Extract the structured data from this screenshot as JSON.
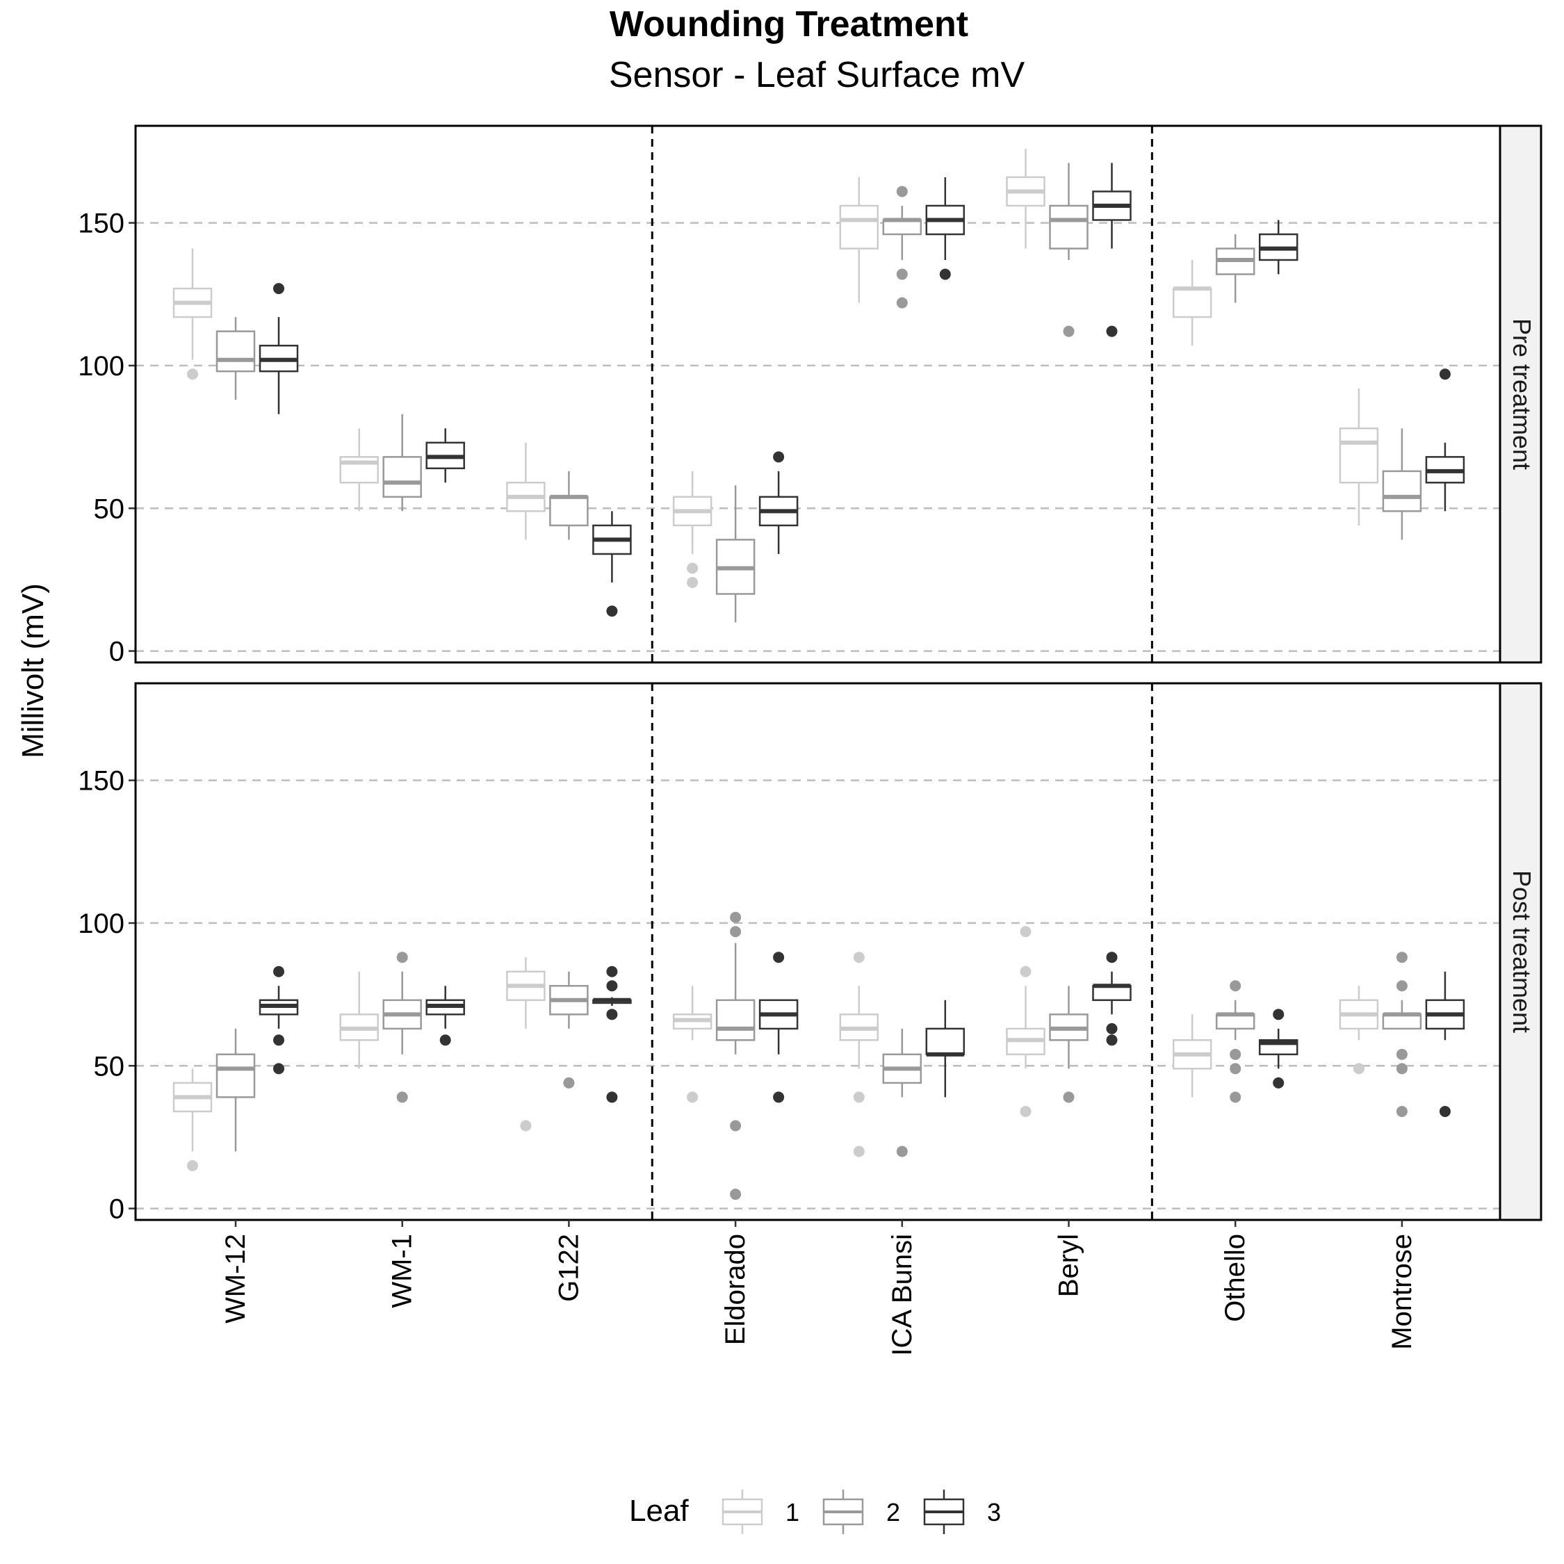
{
  "chart_data": {
    "type": "boxplot",
    "title": "Wounding Treatment",
    "subtitle": "Sensor - Leaf Surface mV",
    "ylabel": "Millivolt (mV)",
    "xlabel": "",
    "ylim": [
      -4,
      184
    ],
    "yticks": [
      0,
      50,
      100,
      150
    ],
    "grid": "horizontal dashed",
    "categories": [
      "WM-12",
      "WM-1",
      "G122",
      "Eldorado",
      "ICA Bunsi",
      "Beryl",
      "Othello",
      "Montrose"
    ],
    "group_separators_after": [
      3,
      6
    ],
    "legend": {
      "title": "Leaf",
      "position": "bottom",
      "entries": [
        "1",
        "2",
        "3"
      ]
    },
    "series_colors": [
      "#cccccc",
      "#999999",
      "#333333"
    ],
    "panels": [
      {
        "label": "Pre treatment",
        "boxes": [
          [
            {
              "min": 102,
              "q1": 117,
              "median": 122,
              "q3": 127,
              "max": 141,
              "outliers": [
                97
              ]
            },
            {
              "min": 88,
              "q1": 98,
              "median": 102,
              "q3": 112,
              "max": 117,
              "outliers": []
            },
            {
              "min": 83,
              "q1": 98,
              "median": 102,
              "q3": 107,
              "max": 117,
              "outliers": [
                127
              ]
            }
          ],
          [
            {
              "min": 49,
              "q1": 59,
              "median": 66,
              "q3": 68,
              "max": 78,
              "outliers": []
            },
            {
              "min": 49,
              "q1": 54,
              "median": 59,
              "q3": 68,
              "max": 83,
              "outliers": []
            },
            {
              "min": 59,
              "q1": 64,
              "median": 68,
              "q3": 73,
              "max": 78,
              "outliers": []
            }
          ],
          [
            {
              "min": 39,
              "q1": 49,
              "median": 54,
              "q3": 59,
              "max": 73,
              "outliers": []
            },
            {
              "min": 39,
              "q1": 44,
              "median": 54,
              "q3": 54,
              "max": 63,
              "outliers": []
            },
            {
              "min": 24,
              "q1": 34,
              "median": 39,
              "q3": 44,
              "max": 49,
              "outliers": [
                14
              ]
            }
          ],
          [
            {
              "min": 34,
              "q1": 44,
              "median": 49,
              "q3": 54,
              "max": 63,
              "outliers": [
                29,
                24
              ]
            },
            {
              "min": 10,
              "q1": 20,
              "median": 29,
              "q3": 39,
              "max": 58,
              "outliers": []
            },
            {
              "min": 34,
              "q1": 44,
              "median": 49,
              "q3": 54,
              "max": 63,
              "outliers": [
                68
              ]
            }
          ],
          [
            {
              "min": 122,
              "q1": 141,
              "median": 151,
              "q3": 156,
              "max": 166,
              "outliers": []
            },
            {
              "min": 137,
              "q1": 146,
              "median": 151,
              "q3": 151,
              "max": 156,
              "outliers": [
                161,
                132,
                122
              ]
            },
            {
              "min": 137,
              "q1": 146,
              "median": 151,
              "q3": 156,
              "max": 166,
              "outliers": [
                132
              ]
            }
          ],
          [
            {
              "min": 141,
              "q1": 156,
              "median": 161,
              "q3": 166,
              "max": 176,
              "outliers": []
            },
            {
              "min": 137,
              "q1": 141,
              "median": 151,
              "q3": 156,
              "max": 171,
              "outliers": [
                112
              ]
            },
            {
              "min": 141,
              "q1": 151,
              "median": 156,
              "q3": 161,
              "max": 171,
              "outliers": [
                112
              ]
            }
          ],
          [
            {
              "min": 107,
              "q1": 117,
              "median": 127,
              "q3": 127,
              "max": 137,
              "outliers": []
            },
            {
              "min": 122,
              "q1": 132,
              "median": 137,
              "q3": 141,
              "max": 146,
              "outliers": []
            },
            {
              "min": 132,
              "q1": 137,
              "median": 141,
              "q3": 146,
              "max": 151,
              "outliers": []
            }
          ],
          [
            {
              "min": 44,
              "q1": 59,
              "median": 73,
              "q3": 78,
              "max": 92,
              "outliers": []
            },
            {
              "min": 39,
              "q1": 49,
              "median": 54,
              "q3": 63,
              "max": 78,
              "outliers": []
            },
            {
              "min": 49,
              "q1": 59,
              "median": 63,
              "q3": 68,
              "max": 73,
              "outliers": [
                97
              ]
            }
          ]
        ]
      },
      {
        "label": "Post treatment",
        "boxes": [
          [
            {
              "min": 20,
              "q1": 34,
              "median": 39,
              "q3": 44,
              "max": 49,
              "outliers": [
                15
              ]
            },
            {
              "min": 20,
              "q1": 39,
              "median": 49,
              "q3": 54,
              "max": 63,
              "outliers": []
            },
            {
              "min": 63,
              "q1": 68,
              "median": 71,
              "q3": 73,
              "max": 78,
              "outliers": [
                83,
                59,
                49
              ]
            }
          ],
          [
            {
              "min": 49,
              "q1": 59,
              "median": 63,
              "q3": 68,
              "max": 83,
              "outliers": []
            },
            {
              "min": 54,
              "q1": 63,
              "median": 68,
              "q3": 73,
              "max": 83,
              "outliers": [
                88,
                39
              ]
            },
            {
              "min": 63,
              "q1": 68,
              "median": 71,
              "q3": 73,
              "max": 78,
              "outliers": [
                59
              ]
            }
          ],
          [
            {
              "min": 63,
              "q1": 73,
              "median": 78,
              "q3": 83,
              "max": 88,
              "outliers": [
                29
              ]
            },
            {
              "min": 63,
              "q1": 68,
              "median": 73,
              "q3": 78,
              "max": 83,
              "outliers": [
                44
              ]
            },
            {
              "min": 71,
              "q1": 72,
              "median": 73,
              "q3": 73,
              "max": 74,
              "outliers": [
                83,
                78,
                68,
                39
              ]
            }
          ],
          [
            {
              "min": 59,
              "q1": 63,
              "median": 66,
              "q3": 68,
              "max": 78,
              "outliers": [
                39
              ]
            },
            {
              "min": 54,
              "q1": 59,
              "median": 63,
              "q3": 73,
              "max": 93,
              "outliers": [
                102,
                97,
                29,
                5
              ]
            },
            {
              "min": 54,
              "q1": 63,
              "median": 68,
              "q3": 73,
              "max": 73,
              "outliers": [
                88,
                39
              ]
            }
          ],
          [
            {
              "min": 49,
              "q1": 59,
              "median": 63,
              "q3": 68,
              "max": 78,
              "outliers": [
                88,
                39,
                20
              ]
            },
            {
              "min": 39,
              "q1": 44,
              "median": 49,
              "q3": 54,
              "max": 63,
              "outliers": [
                20
              ]
            },
            {
              "min": 39,
              "q1": 54,
              "median": 54,
              "q3": 63,
              "max": 73,
              "outliers": []
            }
          ],
          [
            {
              "min": 49,
              "q1": 54,
              "median": 59,
              "q3": 63,
              "max": 78,
              "outliers": [
                97,
                83,
                34
              ]
            },
            {
              "min": 49,
              "q1": 59,
              "median": 63,
              "q3": 68,
              "max": 78,
              "outliers": [
                39
              ]
            },
            {
              "min": 68,
              "q1": 73,
              "median": 78,
              "q3": 78,
              "max": 83,
              "outliers": [
                88,
                63,
                59
              ]
            }
          ],
          [
            {
              "min": 39,
              "q1": 49,
              "median": 54,
              "q3": 59,
              "max": 68,
              "outliers": []
            },
            {
              "min": 59,
              "q1": 63,
              "median": 68,
              "q3": 68,
              "max": 73,
              "outliers": [
                78,
                54,
                49,
                39
              ]
            },
            {
              "min": 49,
              "q1": 54,
              "median": 58,
              "q3": 59,
              "max": 63,
              "outliers": [
                68,
                44
              ]
            }
          ],
          [
            {
              "min": 59,
              "q1": 63,
              "median": 68,
              "q3": 73,
              "max": 78,
              "outliers": [
                49
              ]
            },
            {
              "min": 63,
              "q1": 63,
              "median": 68,
              "q3": 68,
              "max": 73,
              "outliers": [
                88,
                78,
                54,
                49,
                34
              ]
            },
            {
              "min": 59,
              "q1": 63,
              "median": 68,
              "q3": 73,
              "max": 83,
              "outliers": [
                34
              ]
            }
          ]
        ]
      }
    ]
  }
}
